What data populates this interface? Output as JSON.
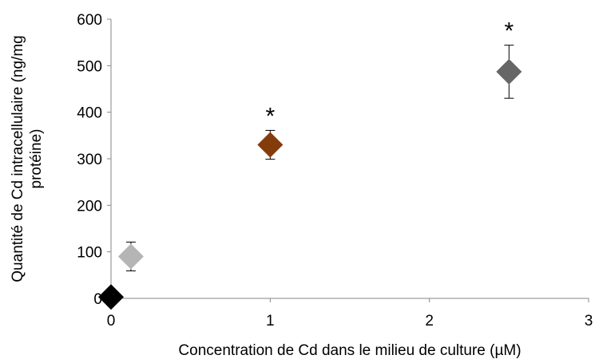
{
  "chart_data": {
    "type": "scatter",
    "title": "",
    "xlabel": "Concentration de Cd dans le milieu de culture (µM)",
    "ylabel_lines": [
      "Quantité de Cd intracellulaire (ng/mg",
      "protéine)"
    ],
    "xlim": [
      0,
      3
    ],
    "ylim": [
      0,
      600
    ],
    "x_ticks": [
      "0",
      "1",
      "2",
      "3"
    ],
    "y_ticks": [
      "0",
      "100",
      "200",
      "300",
      "400",
      "500",
      "600"
    ],
    "grid": false,
    "legend": "none",
    "marker": "diamond",
    "points": [
      {
        "x": 0,
        "y": 3,
        "err": 0,
        "color": "#000000",
        "annotation": ""
      },
      {
        "x": 0.125,
        "y": 90,
        "err": 31,
        "color": "#b5b5b5",
        "annotation": ""
      },
      {
        "x": 1,
        "y": 330,
        "err": 31,
        "color": "#843c0c",
        "annotation": "*"
      },
      {
        "x": 2.5,
        "y": 487,
        "err": 57,
        "color": "#666666",
        "annotation": "*"
      }
    ]
  }
}
